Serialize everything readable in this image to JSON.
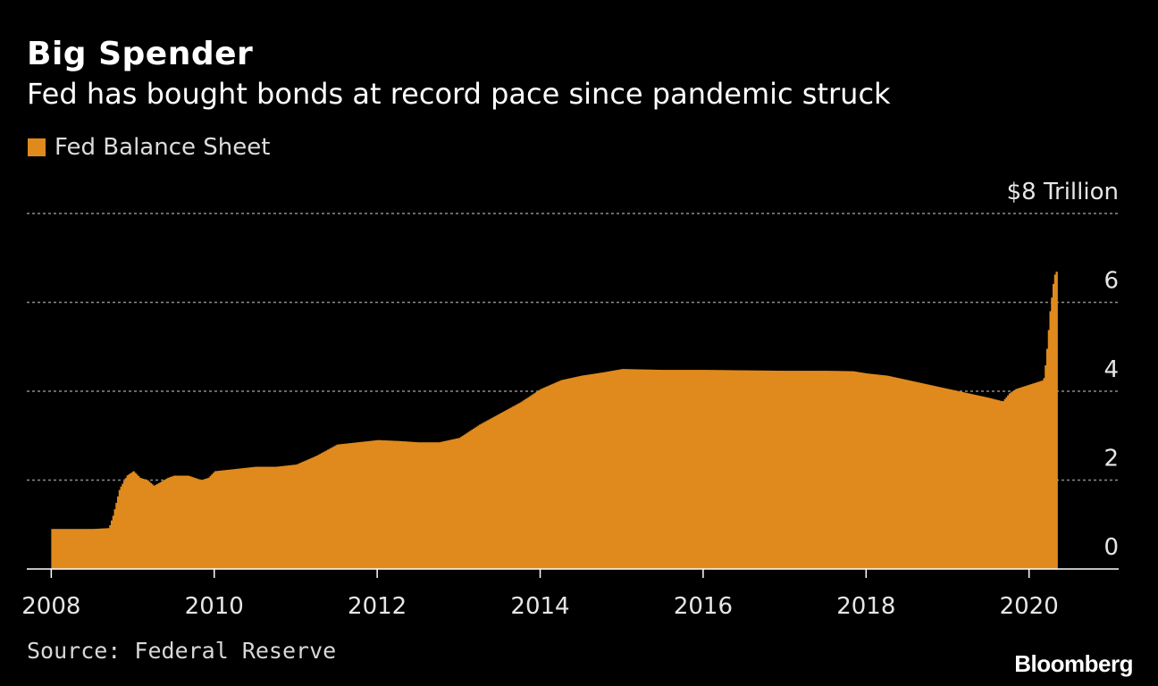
{
  "header": {
    "title": "Big Spender",
    "subtitle": "Fed has bought bonds at record pace since pandemic struck"
  },
  "legend": {
    "label": "Fed Balance Sheet"
  },
  "footer": {
    "source": "Source: Federal Reserve",
    "brand": "Bloomberg"
  },
  "colors": {
    "bar": "#e08a1e",
    "background": "#000000",
    "grid": "#8c8c8c",
    "text": "#ffffff"
  },
  "chart_data": {
    "type": "bar",
    "series": [
      {
        "name": "Fed Balance Sheet",
        "points": [
          [
            2008.0,
            0.9
          ],
          [
            2008.5,
            0.9
          ],
          [
            2008.7,
            0.92
          ],
          [
            2008.75,
            1.2
          ],
          [
            2008.83,
            1.8
          ],
          [
            2008.92,
            2.1
          ],
          [
            2009.0,
            2.2
          ],
          [
            2009.08,
            2.05
          ],
          [
            2009.17,
            2.0
          ],
          [
            2009.25,
            1.87
          ],
          [
            2009.33,
            1.95
          ],
          [
            2009.42,
            2.05
          ],
          [
            2009.5,
            2.1
          ],
          [
            2009.67,
            2.1
          ],
          [
            2009.75,
            2.05
          ],
          [
            2009.83,
            2.0
          ],
          [
            2009.92,
            2.05
          ],
          [
            2010.0,
            2.2
          ],
          [
            2010.25,
            2.25
          ],
          [
            2010.5,
            2.3
          ],
          [
            2010.75,
            2.3
          ],
          [
            2011.0,
            2.35
          ],
          [
            2011.25,
            2.55
          ],
          [
            2011.5,
            2.8
          ],
          [
            2011.75,
            2.85
          ],
          [
            2012.0,
            2.9
          ],
          [
            2012.25,
            2.88
          ],
          [
            2012.5,
            2.85
          ],
          [
            2012.75,
            2.85
          ],
          [
            2013.0,
            2.95
          ],
          [
            2013.25,
            3.25
          ],
          [
            2013.5,
            3.5
          ],
          [
            2013.75,
            3.75
          ],
          [
            2014.0,
            4.05
          ],
          [
            2014.25,
            4.25
          ],
          [
            2014.5,
            4.35
          ],
          [
            2014.75,
            4.42
          ],
          [
            2015.0,
            4.5
          ],
          [
            2015.5,
            4.48
          ],
          [
            2016.0,
            4.48
          ],
          [
            2016.5,
            4.47
          ],
          [
            2017.0,
            4.46
          ],
          [
            2017.5,
            4.46
          ],
          [
            2017.83,
            4.45
          ],
          [
            2018.0,
            4.4
          ],
          [
            2018.25,
            4.35
          ],
          [
            2018.5,
            4.25
          ],
          [
            2018.75,
            4.15
          ],
          [
            2019.0,
            4.05
          ],
          [
            2019.25,
            3.95
          ],
          [
            2019.5,
            3.85
          ],
          [
            2019.67,
            3.77
          ],
          [
            2019.75,
            3.95
          ],
          [
            2019.83,
            4.05
          ],
          [
            2020.0,
            4.15
          ],
          [
            2020.17,
            4.25
          ],
          [
            2020.2,
            4.7
          ],
          [
            2020.25,
            5.8
          ],
          [
            2020.3,
            6.6
          ],
          [
            2020.33,
            6.7
          ]
        ]
      }
    ],
    "x_ticks": [
      "2008",
      "2010",
      "2012",
      "2014",
      "2016",
      "2018",
      "2020"
    ],
    "y_ticks": [
      "0",
      "2",
      "4",
      "6",
      "$8 Trillion"
    ],
    "xlim": [
      2007.7,
      2021.1
    ],
    "ylim": [
      0,
      8
    ],
    "y_axis_side": "right",
    "grid": "horizontal dashed",
    "legend_position": "top-left"
  }
}
